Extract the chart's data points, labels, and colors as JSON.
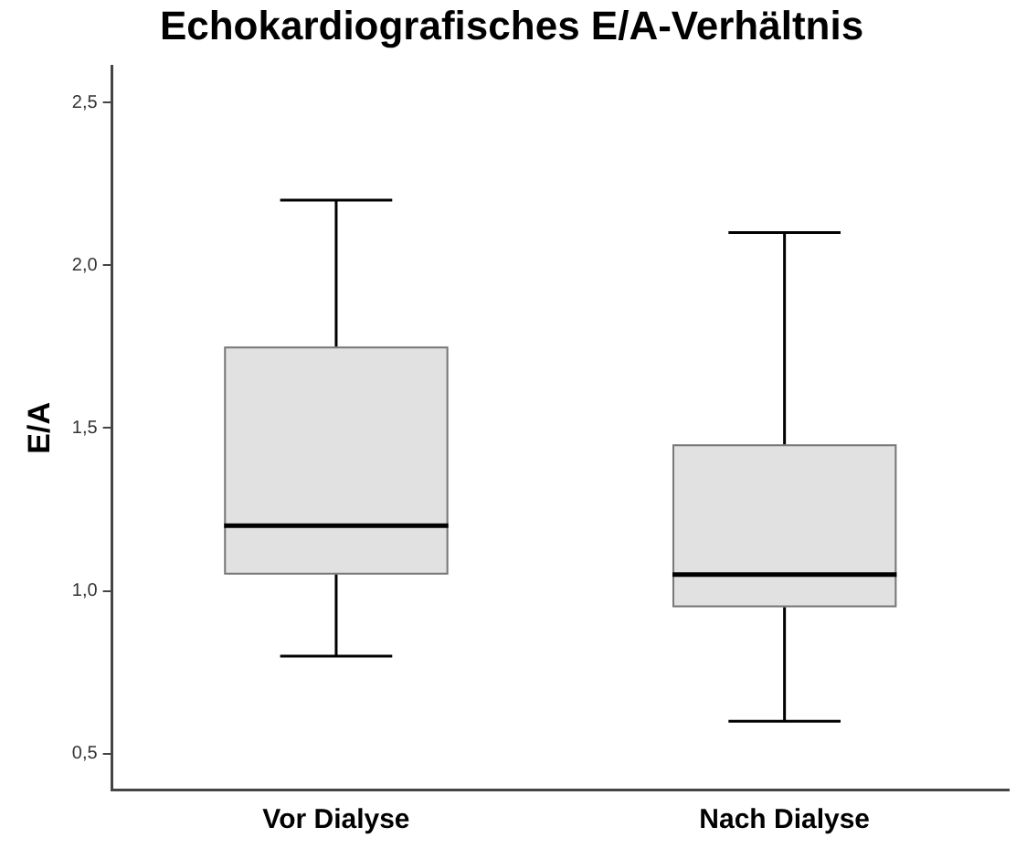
{
  "chart_data": {
    "type": "box",
    "title": "Echokardiografisches E/A-Verhältnis",
    "ylabel": "E/A",
    "categories": [
      "Vor Dialyse",
      "Nach Dialyse"
    ],
    "color": "#e1e1e1",
    "boxes": [
      {
        "low": 0.8,
        "q1": 1.05,
        "median": 1.2,
        "q3": 1.75,
        "high": 2.2
      },
      {
        "low": 0.6,
        "q1": 0.95,
        "median": 1.05,
        "q3": 1.45,
        "high": 2.1
      }
    ],
    "ylim": [
      0.39,
      2.61
    ],
    "yticks": [
      {
        "value": 0.5,
        "label": "0,5"
      },
      {
        "value": 1.0,
        "label": "1,0"
      },
      {
        "value": 1.5,
        "label": "1,5"
      },
      {
        "value": 2.0,
        "label": "2,0"
      },
      {
        "value": 2.5,
        "label": "2,5"
      }
    ],
    "grid": false,
    "legend": false
  }
}
